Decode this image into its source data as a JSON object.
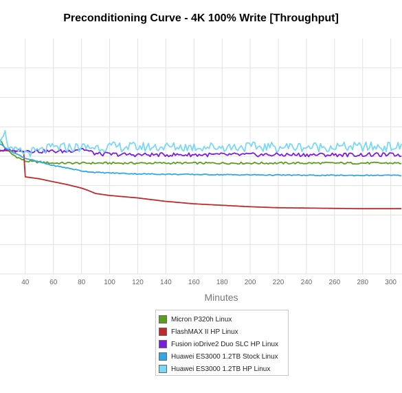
{
  "chart_data": {
    "type": "line",
    "title": "Preconditioning Curve - 4K 100% Write [Throughput]",
    "xlabel": "Minutes",
    "ylabel": "",
    "xlim": [
      22,
      308
    ],
    "ylim": [
      0,
      480
    ],
    "x_ticks": [
      40,
      60,
      80,
      100,
      120,
      140,
      160,
      180,
      200,
      220,
      240,
      260,
      280,
      300
    ],
    "y_gridlines": [
      0,
      60,
      120,
      180,
      240,
      300,
      360,
      420
    ],
    "grid": true,
    "legend_position": "bottom-center",
    "series": [
      {
        "name": "Micron P320h Linux",
        "color": "#5a9e1c",
        "points": [
          [
            22,
            275
          ],
          [
            25,
            258
          ],
          [
            30,
            245
          ],
          [
            35,
            237
          ],
          [
            40,
            230
          ],
          [
            50,
            228
          ],
          [
            60,
            226
          ],
          [
            80,
            226
          ],
          [
            100,
            226
          ],
          [
            150,
            226
          ],
          [
            200,
            226
          ],
          [
            250,
            226
          ],
          [
            308,
            226
          ]
        ],
        "noise": 2
      },
      {
        "name": "FlashMAX II HP Linux",
        "color": "#c0282a",
        "points": [
          [
            22,
            252
          ],
          [
            30,
            251
          ],
          [
            39,
            250
          ],
          [
            40,
            198
          ],
          [
            50,
            194
          ],
          [
            60,
            188
          ],
          [
            70,
            182
          ],
          [
            80,
            175
          ],
          [
            85,
            170
          ],
          [
            90,
            164
          ],
          [
            100,
            160
          ],
          [
            120,
            155
          ],
          [
            140,
            148
          ],
          [
            160,
            143
          ],
          [
            180,
            140
          ],
          [
            200,
            137
          ],
          [
            220,
            135
          ],
          [
            250,
            134
          ],
          [
            280,
            133
          ],
          [
            308,
            133
          ]
        ],
        "noise": 0
      },
      {
        "name": "Fusion ioDrive2 Duo SLC HP Linux",
        "color": "#7a1de0",
        "points": [
          [
            22,
            252
          ],
          [
            40,
            252
          ],
          [
            50,
            250
          ],
          [
            60,
            250
          ],
          [
            70,
            250
          ],
          [
            80,
            256
          ],
          [
            90,
            245
          ],
          [
            100,
            244
          ],
          [
            120,
            243
          ],
          [
            150,
            243
          ],
          [
            200,
            243
          ],
          [
            250,
            243
          ],
          [
            308,
            243
          ]
        ],
        "noise": 4
      },
      {
        "name": "Huawei ES3000 1.2TB Stock Linux",
        "color": "#2ea9e6",
        "points": [
          [
            22,
            265
          ],
          [
            30,
            250
          ],
          [
            40,
            236
          ],
          [
            50,
            228
          ],
          [
            60,
            221
          ],
          [
            70,
            216
          ],
          [
            80,
            210
          ],
          [
            90,
            207
          ],
          [
            100,
            206
          ],
          [
            120,
            204
          ],
          [
            150,
            203
          ],
          [
            200,
            202
          ],
          [
            250,
            201
          ],
          [
            308,
            201
          ]
        ],
        "noise": 1
      },
      {
        "name": "Huawei ES3000 1.2TB HP Linux",
        "color": "#78d8f6",
        "points": [
          [
            22,
            275
          ],
          [
            24,
            290
          ],
          [
            26,
            285
          ],
          [
            28,
            262
          ],
          [
            30,
            250
          ],
          [
            40,
            248
          ],
          [
            50,
            250
          ],
          [
            60,
            258
          ],
          [
            80,
            258
          ],
          [
            100,
            259
          ],
          [
            150,
            259
          ],
          [
            200,
            259
          ],
          [
            250,
            259
          ],
          [
            308,
            259
          ]
        ],
        "noise": 10
      }
    ]
  }
}
